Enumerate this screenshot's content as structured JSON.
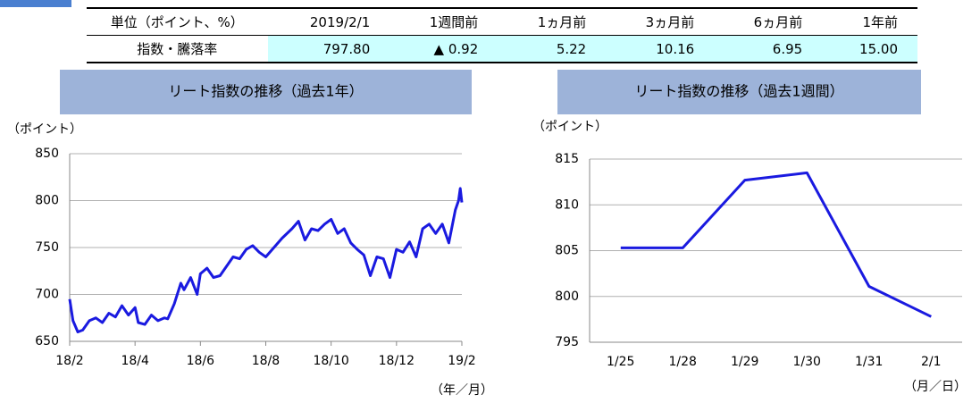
{
  "table": {
    "header": [
      "単位（ポイント、%）",
      "2019/2/1",
      "1週間前",
      "1ヵ月前",
      "3ヵ月前",
      "6ヵ月前",
      "1年前"
    ],
    "rows": [
      [
        "指数・騰落率",
        "797.80",
        "▲ 0.92",
        "5.22",
        "10.16",
        "6.95",
        "15.00"
      ]
    ]
  },
  "chart_data": [
    {
      "type": "line",
      "title": "リート指数の推移（過去1年）",
      "y_label": "（ポイント）",
      "x_label": "（年／月）",
      "color": "#1a1ae0",
      "grid": true,
      "xlim": [
        0,
        12
      ],
      "xticks": [
        {
          "value": 0,
          "label": "18/2"
        },
        {
          "value": 2,
          "label": "18/4"
        },
        {
          "value": 4,
          "label": "18/6"
        },
        {
          "value": 6,
          "label": "18/8"
        },
        {
          "value": 8,
          "label": "18/10"
        },
        {
          "value": 10,
          "label": "18/12"
        },
        {
          "value": 12,
          "label": "19/2"
        }
      ],
      "ylim": [
        650,
        850
      ],
      "yticks": [
        650,
        700,
        750,
        800,
        850
      ],
      "x": [
        0,
        0.1,
        0.25,
        0.4,
        0.6,
        0.8,
        1.0,
        1.2,
        1.4,
        1.6,
        1.8,
        2.0,
        2.1,
        2.3,
        2.5,
        2.7,
        2.9,
        3.0,
        3.2,
        3.4,
        3.5,
        3.7,
        3.9,
        4.0,
        4.2,
        4.4,
        4.6,
        4.8,
        5.0,
        5.2,
        5.4,
        5.6,
        5.8,
        6.0,
        6.2,
        6.5,
        6.8,
        7.0,
        7.2,
        7.4,
        7.6,
        7.8,
        8.0,
        8.2,
        8.4,
        8.6,
        8.8,
        9.0,
        9.2,
        9.4,
        9.6,
        9.8,
        10.0,
        10.2,
        10.4,
        10.6,
        10.8,
        11.0,
        11.2,
        11.4,
        11.6,
        11.8,
        11.9,
        11.95,
        12.0
      ],
      "values": [
        695,
        672,
        660,
        662,
        672,
        675,
        670,
        680,
        676,
        688,
        678,
        686,
        670,
        668,
        678,
        672,
        675,
        674,
        690,
        712,
        705,
        718,
        700,
        722,
        728,
        718,
        720,
        730,
        740,
        738,
        748,
        752,
        745,
        740,
        748,
        760,
        770,
        778,
        758,
        770,
        768,
        775,
        780,
        765,
        770,
        755,
        748,
        742,
        720,
        740,
        738,
        718,
        748,
        745,
        756,
        740,
        770,
        775,
        765,
        775,
        755,
        790,
        800,
        813,
        798
      ]
    },
    {
      "type": "line",
      "title": "リート指数の推移（過去1週間）",
      "y_label": "（ポイント）",
      "x_label": "（月／日）",
      "color": "#1a1ae0",
      "grid": true,
      "categories": [
        "1/25",
        "1/28",
        "1/29",
        "1/30",
        "1/31",
        "2/1"
      ],
      "values": [
        805.3,
        805.3,
        812.7,
        813.5,
        801.1,
        797.8
      ],
      "ylim": [
        795,
        815
      ],
      "yticks": [
        795,
        800,
        805,
        810,
        815
      ]
    }
  ]
}
